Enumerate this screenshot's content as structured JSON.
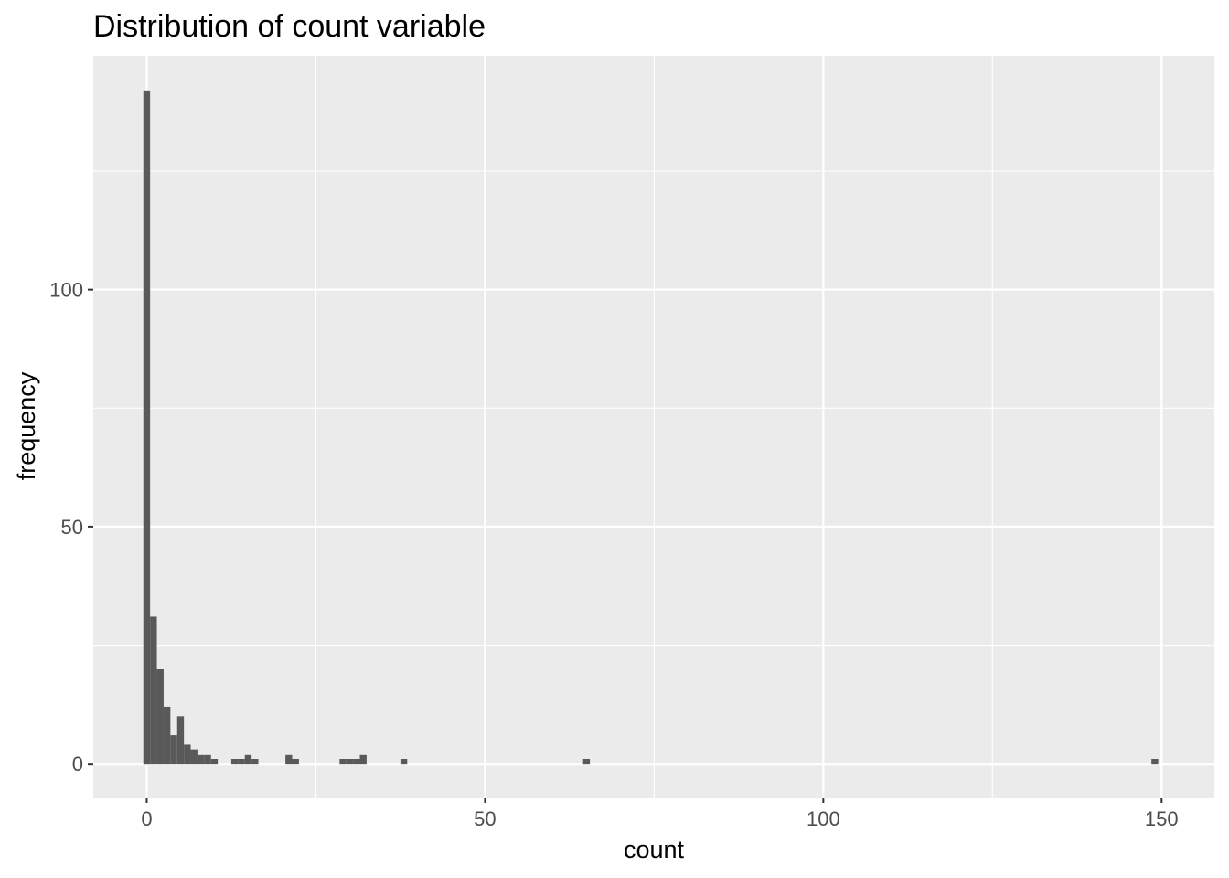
{
  "chart_data": {
    "type": "bar",
    "title": "Distribution of count variable",
    "xlabel": "count",
    "ylabel": "frequency",
    "xlim": [
      -7.9,
      157.8
    ],
    "ylim": [
      -7.1,
      149.3
    ],
    "x_ticks": [
      0,
      50,
      100,
      150
    ],
    "x_tick_labels": [
      "0",
      "50",
      "100",
      "150"
    ],
    "x_minor_ticks": [
      25,
      75,
      125
    ],
    "y_ticks": [
      0,
      50,
      100
    ],
    "y_tick_labels": [
      "0",
      "50",
      "100"
    ],
    "y_minor_ticks": [
      25,
      75,
      125
    ],
    "bin_width": 1,
    "x": [
      0,
      1,
      2,
      3,
      4,
      5,
      6,
      7,
      8,
      9,
      10,
      13,
      14,
      15,
      16,
      21,
      22,
      29,
      30,
      31,
      32,
      38,
      65,
      149
    ],
    "values": [
      142,
      31,
      20,
      12,
      6,
      10,
      4,
      3,
      2,
      2,
      1,
      1,
      1,
      2,
      1,
      2,
      1,
      1,
      1,
      1,
      2,
      1,
      1,
      1
    ],
    "grid": true,
    "colors": {
      "bar_fill": "#595959",
      "panel_background": "#ebebeb",
      "grid_line": "#ffffff",
      "tick_text": "#4d4d4d",
      "tick_mark": "#333333"
    }
  }
}
